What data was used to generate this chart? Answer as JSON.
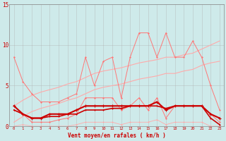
{
  "x": [
    0,
    1,
    2,
    3,
    4,
    5,
    6,
    7,
    8,
    9,
    10,
    11,
    12,
    13,
    14,
    15,
    16,
    17,
    18,
    19,
    20,
    21,
    22,
    23
  ],
  "line_jagged_top": [
    8.5,
    5.5,
    4.0,
    3.0,
    3.0,
    3.0,
    3.5,
    4.0,
    8.5,
    5.0,
    8.0,
    8.5,
    3.5,
    8.5,
    11.5,
    11.5,
    8.5,
    11.5,
    8.5,
    8.5,
    10.5,
    8.5,
    5.0,
    2.0
  ],
  "line_jagged_mid": [
    2.0,
    1.5,
    0.5,
    0.5,
    0.5,
    0.8,
    1.0,
    1.5,
    3.5,
    3.5,
    3.5,
    3.5,
    2.0,
    2.5,
    3.5,
    2.0,
    3.5,
    1.0,
    2.5,
    2.5,
    2.5,
    2.5,
    1.5,
    0.5
  ],
  "line_slope_upper": [
    2.5,
    3.2,
    3.8,
    4.2,
    4.5,
    4.8,
    5.2,
    5.5,
    6.0,
    6.5,
    6.8,
    7.0,
    7.2,
    7.5,
    7.8,
    8.0,
    8.2,
    8.5,
    8.5,
    8.8,
    9.0,
    9.5,
    10.0,
    10.5
  ],
  "line_slope_lower": [
    0.5,
    1.2,
    1.8,
    2.2,
    2.5,
    2.8,
    3.2,
    3.5,
    4.0,
    4.5,
    4.8,
    5.0,
    5.2,
    5.5,
    5.8,
    6.0,
    6.2,
    6.5,
    6.5,
    6.8,
    7.0,
    7.5,
    7.8,
    8.0
  ],
  "line_flat_red": [
    2.5,
    1.5,
    1.0,
    1.0,
    1.5,
    1.5,
    1.5,
    2.0,
    2.5,
    2.5,
    2.5,
    2.5,
    2.5,
    2.5,
    2.5,
    2.5,
    3.0,
    2.0,
    2.5,
    2.5,
    2.5,
    2.5,
    1.5,
    1.0
  ],
  "line_flat_dark": [
    2.0,
    1.5,
    1.0,
    1.0,
    1.2,
    1.2,
    1.5,
    1.5,
    2.0,
    2.0,
    2.0,
    2.2,
    2.2,
    2.5,
    2.5,
    2.5,
    2.5,
    2.2,
    2.5,
    2.5,
    2.5,
    2.5,
    1.0,
    0.2
  ],
  "line_low_pink": [
    0.0,
    0.2,
    0.0,
    0.0,
    0.0,
    0.0,
    0.0,
    0.2,
    0.5,
    0.5,
    0.5,
    0.5,
    0.2,
    0.5,
    0.5,
    0.5,
    0.8,
    0.2,
    0.5,
    0.5,
    0.5,
    0.5,
    0.0,
    0.0
  ],
  "ylim": [
    0,
    15
  ],
  "xlim": [
    -0.5,
    23.5
  ],
  "bg_color": "#ceeaea",
  "grid_color": "#aaaaaa",
  "xlabel": "Vent moyen/en rafales ( km/h )",
  "color_pink_light": "#ffaaaa",
  "color_pink_med": "#ff7777",
  "color_red_dark": "#cc0000",
  "color_red_bright": "#ff2222"
}
